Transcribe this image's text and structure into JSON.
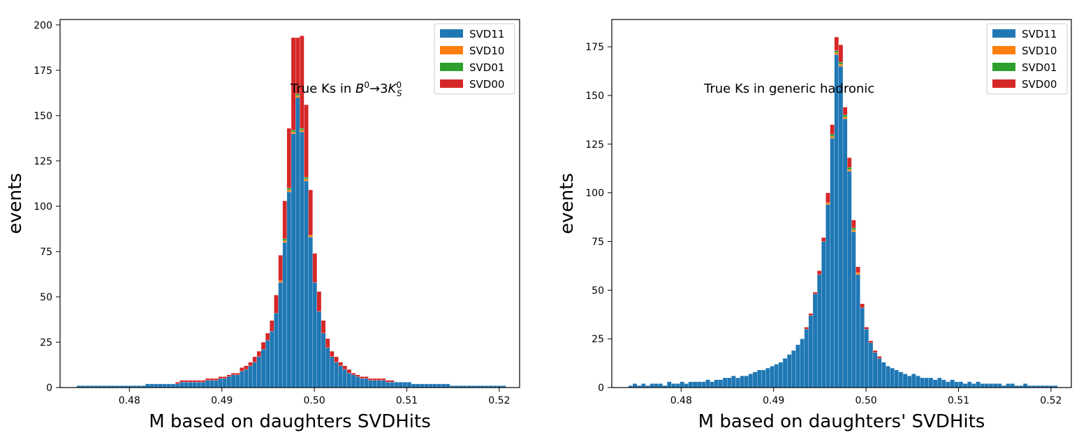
{
  "colors": {
    "SVD11": "#1f77b4",
    "SVD10": "#ff7f0e",
    "SVD01": "#2ca02c",
    "SVD00": "#d62728"
  },
  "chart_data": [
    {
      "type": "bar",
      "stacked": true,
      "annotation": "True Ks in B⁰→3K⁰S",
      "annotation_parts": {
        "prefix": "True Ks in ",
        "b": "B",
        "b_sup": "0",
        "arrow": "→3",
        "k": "K",
        "k_sup": "0",
        "k_sub": "S"
      },
      "xlabel": "M based on daughters SVDHits",
      "ylabel": "events",
      "xlim": [
        0.4725,
        0.5222
      ],
      "ylim": [
        0,
        203
      ],
      "xticks": [
        0.48,
        0.49,
        0.5,
        0.51,
        0.52
      ],
      "xtick_labels": [
        "0.48",
        "0.49",
        "0.50",
        "0.51",
        "0.52"
      ],
      "yticks": [
        0,
        25,
        50,
        75,
        100,
        125,
        150,
        175,
        200
      ],
      "ytick_labels": [
        "0",
        "25",
        "50",
        "75",
        "100",
        "125",
        "150",
        "175",
        "200"
      ],
      "legend": {
        "position": "top-right",
        "entries": [
          "SVD11",
          "SVD10",
          "SVD01",
          "SVD00"
        ]
      },
      "bins": {
        "start": 0.4743,
        "end": 0.5207,
        "count": 100
      },
      "series": [
        {
          "name": "SVD11",
          "values": [
            1,
            1,
            1,
            1,
            1,
            1,
            1,
            1,
            1,
            1,
            1,
            1,
            1,
            1,
            1,
            1,
            2,
            2,
            2,
            2,
            2,
            2,
            2,
            2,
            3,
            3,
            3,
            3,
            3,
            3,
            4,
            4,
            4,
            5,
            5,
            6,
            7,
            7,
            9,
            10,
            12,
            14,
            17,
            21,
            26,
            31,
            41,
            58,
            80,
            108,
            140,
            160,
            141,
            114,
            83,
            58,
            42,
            30,
            22,
            17,
            14,
            12,
            10,
            8,
            7,
            6,
            5,
            5,
            4,
            4,
            4,
            4,
            3,
            3,
            3,
            3,
            3,
            3,
            2,
            2,
            2,
            2,
            2,
            2,
            2,
            2,
            2,
            1,
            1,
            1,
            1,
            1,
            1,
            1,
            1,
            1,
            1,
            1,
            1,
            1
          ]
        },
        {
          "name": "SVD10",
          "values": [
            0,
            0,
            0,
            0,
            0,
            0,
            0,
            0,
            0,
            0,
            0,
            0,
            0,
            0,
            0,
            0,
            0,
            0,
            0,
            0,
            0,
            0,
            0,
            0,
            0,
            0,
            0,
            0,
            0,
            0,
            0,
            0,
            0,
            0,
            0,
            0,
            0,
            0,
            0,
            0,
            0,
            0,
            0,
            0,
            0,
            0,
            0,
            1,
            1,
            1,
            1,
            1,
            1,
            1,
            1,
            0,
            0,
            0,
            0,
            0,
            0,
            0,
            0,
            0,
            0,
            0,
            0,
            0,
            0,
            0,
            0,
            0,
            0,
            0,
            0,
            0,
            0,
            0,
            0,
            0,
            0,
            0,
            0,
            0,
            0,
            0,
            0,
            0,
            0,
            0,
            0,
            0,
            0,
            0,
            0,
            0,
            0,
            0,
            0,
            0
          ]
        },
        {
          "name": "SVD01",
          "values": [
            0,
            0,
            0,
            0,
            0,
            0,
            0,
            0,
            0,
            0,
            0,
            0,
            0,
            0,
            0,
            0,
            0,
            0,
            0,
            0,
            0,
            0,
            0,
            0,
            0,
            0,
            0,
            0,
            0,
            0,
            0,
            0,
            0,
            0,
            0,
            0,
            0,
            0,
            0,
            0,
            0,
            0,
            0,
            0,
            0,
            0,
            0,
            0,
            1,
            1,
            1,
            1,
            1,
            1,
            0,
            0,
            0,
            0,
            0,
            0,
            0,
            0,
            0,
            0,
            0,
            0,
            0,
            0,
            0,
            0,
            0,
            0,
            0,
            0,
            0,
            0,
            0,
            0,
            0,
            0,
            0,
            0,
            0,
            0,
            0,
            0,
            0,
            0,
            0,
            0,
            0,
            0,
            0,
            0,
            0,
            0,
            0,
            0,
            0,
            0
          ]
        },
        {
          "name": "SVD00",
          "values": [
            0,
            0,
            0,
            0,
            0,
            0,
            0,
            0,
            0,
            0,
            0,
            0,
            0,
            0,
            0,
            0,
            0,
            0,
            0,
            0,
            0,
            0,
            0,
            1,
            1,
            1,
            1,
            1,
            1,
            1,
            1,
            1,
            1,
            1,
            1,
            1,
            1,
            1,
            2,
            2,
            2,
            3,
            3,
            4,
            4,
            6,
            10,
            14,
            21,
            33,
            51,
            31,
            51,
            40,
            25,
            16,
            11,
            7,
            5,
            3,
            3,
            2,
            2,
            2,
            1,
            1,
            1,
            1,
            1,
            1,
            1,
            1,
            1,
            1,
            0,
            0,
            0,
            0,
            0,
            0,
            0,
            0,
            0,
            0,
            0,
            0,
            0,
            0,
            0,
            0,
            0,
            0,
            0,
            0,
            0,
            0,
            0,
            0,
            0,
            0
          ]
        }
      ]
    },
    {
      "type": "bar",
      "stacked": true,
      "annotation": "True Ks in generic hadronic",
      "xlabel": "M based on daughters' SVDHits",
      "ylabel": "events",
      "xlim": [
        0.4725,
        0.5222
      ],
      "ylim": [
        0,
        189
      ],
      "xticks": [
        0.48,
        0.49,
        0.5,
        0.51,
        0.52
      ],
      "xtick_labels": [
        "0.48",
        "0.49",
        "0.50",
        "0.51",
        "0.52"
      ],
      "yticks": [
        0,
        25,
        50,
        75,
        100,
        125,
        150,
        175
      ],
      "ytick_labels": [
        "0",
        "25",
        "50",
        "75",
        "100",
        "125",
        "150",
        "175"
      ],
      "legend": {
        "position": "top-right",
        "entries": [
          "SVD11",
          "SVD10",
          "SVD01",
          "SVD00"
        ]
      },
      "bins": {
        "start": 0.4743,
        "end": 0.5207,
        "count": 100
      },
      "series": [
        {
          "name": "SVD11",
          "values": [
            1,
            2,
            1,
            2,
            1,
            2,
            2,
            2,
            1,
            3,
            2,
            2,
            3,
            2,
            3,
            3,
            3,
            3,
            4,
            3,
            4,
            4,
            5,
            5,
            6,
            5,
            6,
            6,
            7,
            8,
            9,
            9,
            10,
            11,
            12,
            13,
            15,
            17,
            19,
            22,
            25,
            30,
            37,
            48,
            58,
            75,
            94,
            128,
            171,
            165,
            138,
            111,
            80,
            58,
            41,
            30,
            23,
            18,
            15,
            13,
            11,
            10,
            9,
            8,
            7,
            6,
            7,
            6,
            5,
            5,
            5,
            4,
            5,
            4,
            3,
            4,
            3,
            3,
            2,
            3,
            2,
            3,
            2,
            2,
            2,
            2,
            2,
            1,
            2,
            2,
            1,
            1,
            2,
            1,
            1,
            1,
            1,
            1,
            1,
            1
          ]
        },
        {
          "name": "SVD10",
          "values": [
            0,
            0,
            0,
            0,
            0,
            0,
            0,
            0,
            0,
            0,
            0,
            0,
            0,
            0,
            0,
            0,
            0,
            0,
            0,
            0,
            0,
            0,
            0,
            0,
            0,
            0,
            0,
            0,
            0,
            0,
            0,
            0,
            0,
            0,
            0,
            0,
            0,
            0,
            0,
            0,
            0,
            0,
            0,
            0,
            0,
            0,
            1,
            1,
            1,
            1,
            1,
            1,
            1,
            1,
            0,
            0,
            0,
            0,
            0,
            0,
            0,
            0,
            0,
            0,
            0,
            0,
            0,
            0,
            0,
            0,
            0,
            0,
            0,
            0,
            0,
            0,
            0,
            0,
            0,
            0,
            0,
            0,
            0,
            0,
            0,
            0,
            0,
            0,
            0,
            0,
            0,
            0,
            0,
            0,
            0,
            0,
            0,
            0,
            0,
            0
          ]
        },
        {
          "name": "SVD01",
          "values": [
            0,
            0,
            0,
            0,
            0,
            0,
            0,
            0,
            0,
            0,
            0,
            0,
            0,
            0,
            0,
            0,
            0,
            0,
            0,
            0,
            0,
            0,
            0,
            0,
            0,
            0,
            0,
            0,
            0,
            0,
            0,
            0,
            0,
            0,
            0,
            0,
            0,
            0,
            0,
            0,
            0,
            0,
            0,
            0,
            0,
            0,
            0,
            1,
            1,
            1,
            1,
            1,
            1,
            0,
            0,
            0,
            0,
            0,
            0,
            0,
            0,
            0,
            0,
            0,
            0,
            0,
            0,
            0,
            0,
            0,
            0,
            0,
            0,
            0,
            0,
            0,
            0,
            0,
            0,
            0,
            0,
            0,
            0,
            0,
            0,
            0,
            0,
            0,
            0,
            0,
            0,
            0,
            0,
            0,
            0,
            0,
            0,
            0,
            0,
            0
          ]
        },
        {
          "name": "SVD00",
          "values": [
            0,
            0,
            0,
            0,
            0,
            0,
            0,
            0,
            0,
            0,
            0,
            0,
            0,
            0,
            0,
            0,
            0,
            0,
            0,
            0,
            0,
            0,
            0,
            0,
            0,
            0,
            0,
            0,
            0,
            0,
            0,
            0,
            0,
            0,
            0,
            0,
            0,
            0,
            0,
            0,
            0,
            1,
            1,
            1,
            2,
            2,
            5,
            5,
            7,
            9,
            4,
            5,
            4,
            3,
            2,
            1,
            1,
            1,
            1,
            0,
            0,
            0,
            0,
            0,
            0,
            0,
            0,
            0,
            0,
            0,
            0,
            0,
            0,
            0,
            0,
            0,
            0,
            0,
            0,
            0,
            0,
            0,
            0,
            0,
            0,
            0,
            0,
            0,
            0,
            0,
            0,
            0,
            0,
            0,
            0,
            0,
            0,
            0,
            0,
            0
          ]
        }
      ]
    }
  ]
}
